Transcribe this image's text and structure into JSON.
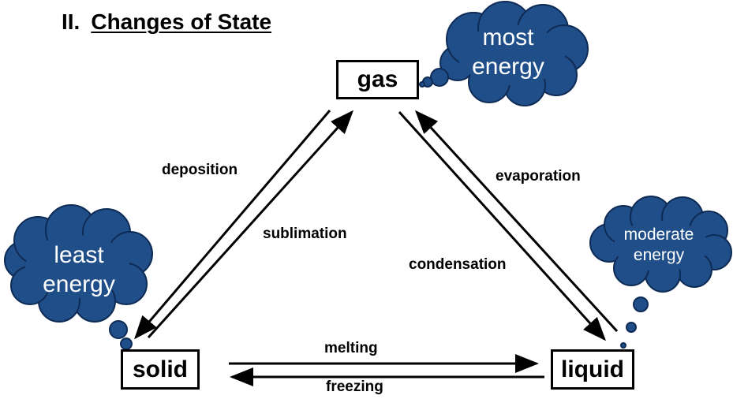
{
  "title": {
    "number": "II.",
    "text": "Changes of State"
  },
  "states": {
    "gas": "gas",
    "solid": "solid",
    "liquid": "liquid"
  },
  "processes": {
    "deposition": "deposition",
    "sublimation": "sublimation",
    "evaporation": "evaporation",
    "condensation": "condensation",
    "melting": "melting",
    "freezing": "freezing"
  },
  "clouds": {
    "most": [
      "most",
      "energy"
    ],
    "least": [
      "least",
      "energy"
    ],
    "moderate": [
      "moderate",
      "energy"
    ]
  },
  "colors": {
    "cloud_fill": "#1F4E89",
    "cloud_stroke": "#0E2B55",
    "text": "#000000"
  }
}
